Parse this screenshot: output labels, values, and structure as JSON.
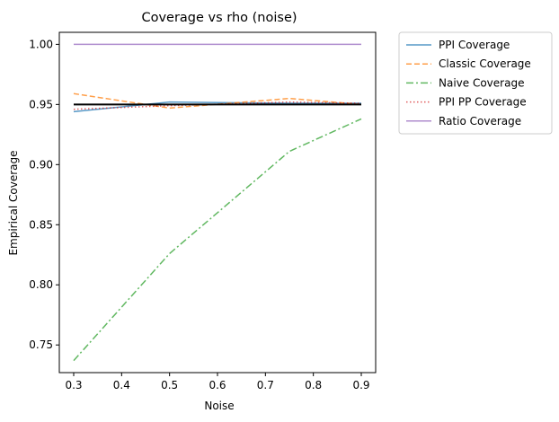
{
  "chart_data": {
    "type": "line",
    "title": "Coverage vs rho (noise)",
    "xlabel": "Noise",
    "ylabel": "Empirical Coverage",
    "xlim": [
      0.27,
      0.93
    ],
    "ylim": [
      0.727,
      1.01
    ],
    "xticks": [
      "0.3",
      "0.4",
      "0.5",
      "0.6",
      "0.7",
      "0.8",
      "0.9"
    ],
    "yticks": [
      "0.75",
      "0.80",
      "0.85",
      "0.90",
      "0.95",
      "1.00"
    ],
    "grid": false,
    "legend_position": "outside-top-right",
    "x": [
      0.3,
      0.5,
      0.75,
      0.9
    ],
    "series": [
      {
        "name": "PPI Coverage",
        "values": [
          0.944,
          0.952,
          0.951,
          0.951
        ],
        "color": "#1f77b4",
        "dash": "solid"
      },
      {
        "name": "Classic Coverage",
        "values": [
          0.959,
          0.947,
          0.955,
          0.95
        ],
        "color": "#ff7f0e",
        "dash": "dashed"
      },
      {
        "name": "Naive Coverage",
        "values": [
          0.737,
          0.826,
          0.911,
          0.938
        ],
        "color": "#2ca02c",
        "dash": "dashdot"
      },
      {
        "name": "PPI PP Coverage",
        "values": [
          0.946,
          0.949,
          0.952,
          0.951
        ],
        "color": "#d62728",
        "dash": "dotted"
      },
      {
        "name": "Ratio Coverage",
        "values": [
          1.0,
          1.0,
          1.0,
          1.0
        ],
        "color": "#9467bd",
        "dash": "solid"
      }
    ],
    "reference_line": {
      "y": 0.95,
      "color": "#000000"
    }
  }
}
